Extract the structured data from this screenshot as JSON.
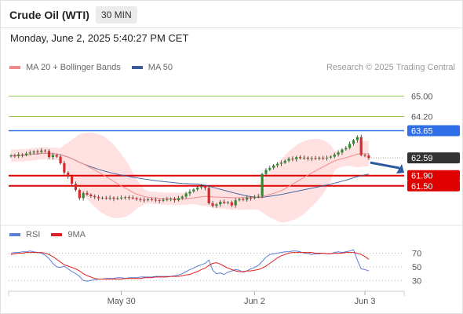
{
  "header": {
    "title": "Crude Oil (WTI)",
    "timeframe": "30 MIN",
    "datetime": "Monday, June 2, 2025 5:40:27 PM CET"
  },
  "legend": {
    "items": [
      {
        "label": "MA 20 + Bollinger Bands",
        "color": "#f08a8a"
      },
      {
        "label": "MA 50",
        "color": "#3a5a9a"
      }
    ],
    "credit": "Research © 2025 Trading Central"
  },
  "rsi_legend": {
    "items": [
      {
        "label": "RSI",
        "color": "#5b7fd6"
      },
      {
        "label": "9MA",
        "color": "#e02020"
      }
    ]
  },
  "colors": {
    "up_candle": "#2e8b2e",
    "down_candle": "#d42a2a",
    "resistance_green": "#8cc85a",
    "blue_level": "#2f6fe8",
    "red_level": "#e00000",
    "last_price": "#333333",
    "bb_fill": "#ffd7d7",
    "ma20": "#f08a8a",
    "ma50": "#3a5a9a",
    "arrow": "#2c5aa0"
  },
  "chart_data": {
    "type": "candlestick",
    "price_axis": {
      "range": [
        60.3,
        65.5
      ]
    },
    "levels": [
      {
        "value": 65.0,
        "label": "65.00",
        "style": "resistance"
      },
      {
        "value": 64.2,
        "label": "64.20",
        "style": "resistance"
      },
      {
        "value": 63.65,
        "label": "63.65",
        "style": "pivot"
      },
      {
        "value": 62.59,
        "label": "62.59",
        "style": "last"
      },
      {
        "value": 61.9,
        "label": "61.90",
        "style": "support"
      },
      {
        "value": 61.5,
        "label": "61.50",
        "style": "support"
      }
    ],
    "x_labels": [
      {
        "index": 29,
        "label": "May 30"
      },
      {
        "index": 64,
        "label": "Jun 2"
      },
      {
        "index": 93,
        "label": "Jun 3"
      }
    ],
    "closes": [
      62.68,
      62.66,
      62.72,
      62.7,
      62.76,
      62.8,
      62.84,
      62.82,
      62.88,
      62.86,
      62.62,
      62.7,
      62.64,
      62.38,
      62.02,
      61.86,
      61.58,
      61.34,
      61.02,
      61.22,
      61.16,
      61.1,
      61.06,
      61.02,
      61.04,
      61.02,
      61.04,
      61.0,
      61.02,
      61.04,
      61.06,
      61.04,
      61.02,
      60.98,
      60.96,
      60.94,
      60.98,
      60.96,
      60.94,
      60.92,
      60.96,
      60.98,
      61.0,
      60.94,
      61.02,
      61.08,
      61.2,
      61.28,
      61.36,
      61.44,
      61.48,
      61.42,
      60.82,
      60.72,
      60.78,
      60.88,
      60.84,
      60.86,
      60.74,
      60.94,
      60.98,
      60.96,
      61.04,
      61.02,
      61.08,
      61.1,
      61.96,
      62.12,
      62.2,
      62.3,
      62.36,
      62.4,
      62.48,
      62.56,
      62.54,
      62.62,
      62.58,
      62.6,
      62.56,
      62.58,
      62.56,
      62.6,
      62.58,
      62.6,
      62.64,
      62.72,
      62.8,
      62.92,
      62.98,
      63.14,
      63.28,
      63.4,
      62.7,
      62.68,
      62.59
    ],
    "rsi": {
      "ticks": [
        70,
        50,
        30
      ],
      "range": [
        20,
        82
      ],
      "rsi": [
        70,
        71,
        71,
        72,
        72,
        73,
        72,
        71,
        70,
        67,
        62,
        55,
        50,
        49,
        51,
        47,
        43,
        40,
        36,
        30,
        29,
        30,
        31,
        32,
        32,
        33,
        33,
        33,
        34,
        34,
        33,
        34,
        34,
        34,
        35,
        35,
        35,
        35,
        36,
        36,
        36,
        36,
        36,
        37,
        38,
        40,
        43,
        46,
        48,
        51,
        53,
        55,
        60,
        45,
        40,
        41,
        39,
        42,
        44,
        46,
        45,
        42,
        44,
        47,
        49,
        52,
        58,
        64,
        68,
        69,
        70,
        71,
        72,
        72,
        73,
        73,
        72,
        70,
        70,
        68,
        69,
        69,
        70,
        69,
        69,
        71,
        72,
        71,
        72,
        73,
        75,
        60,
        47,
        46,
        44
      ],
      "ma9": [
        68,
        69,
        70,
        70,
        71,
        71,
        71,
        71,
        71,
        70,
        68,
        65,
        61,
        57,
        53,
        51,
        49,
        47,
        44,
        40,
        37,
        35,
        33,
        32,
        32,
        32,
        32,
        32,
        32,
        32,
        33,
        33,
        33,
        33,
        33,
        34,
        34,
        34,
        35,
        35,
        35,
        35,
        36,
        36,
        36,
        37,
        38,
        39,
        41,
        43,
        46,
        48,
        52,
        55,
        56,
        54,
        51,
        48,
        46,
        44,
        43,
        43,
        44,
        44,
        45,
        46,
        48,
        51,
        55,
        59,
        63,
        66,
        68,
        70,
        71,
        71,
        71,
        71,
        71,
        71,
        70,
        70,
        70,
        69,
        69,
        70,
        70,
        70,
        71,
        71,
        71,
        70,
        68,
        65,
        61
      ]
    }
  }
}
